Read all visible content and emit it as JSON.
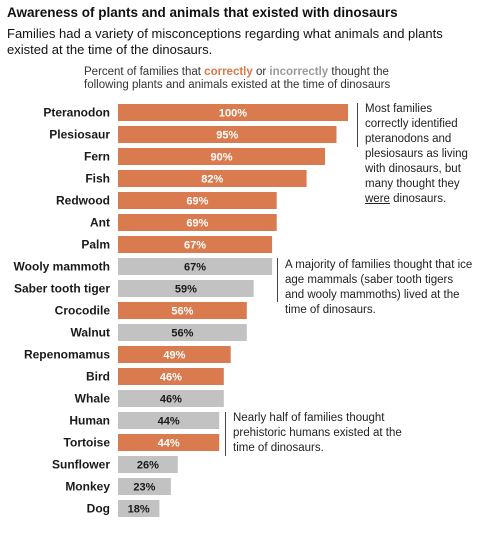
{
  "header": {
    "title": "Awareness of plants and animals that existed with dinosaurs",
    "subtitle": "Families had a variety of misconceptions regarding what animals and plants existed at the time of the dinosaurs."
  },
  "legend": {
    "prefix": "Percent of families that ",
    "correct_word": "correctly",
    "or_word": " or ",
    "incorrect_word": "incorrectly",
    "suffix": " thought the following plants and animals existed at the time of dinosaurs"
  },
  "colors": {
    "correct": "#d97b4f",
    "incorrect": "#c2c2c2"
  },
  "annotations": [
    {
      "text_before": "Most families correctly identified pteranodons and plesiosaurs as living with dinosaurs, but many thought they ",
      "underlined": "were",
      "text_after": " dinosaurs."
    },
    {
      "text_before": "A majority of families thought that ice age mammals (saber tooth tigers and wooly mammoths) lived at the time of dinosaurs.",
      "underlined": "",
      "text_after": ""
    },
    {
      "text_before": "Nearly half of families thought prehistoric humans existed at the time of dinosaurs.",
      "underlined": "",
      "text_after": ""
    }
  ],
  "chart_data": {
    "type": "bar",
    "orientation": "horizontal",
    "xlim": [
      0,
      100
    ],
    "categories": [
      "Pteranodon",
      "Plesiosaur",
      "Fern",
      "Fish",
      "Redwood",
      "Ant",
      "Palm",
      "Wooly mammoth",
      "Saber tooth tiger",
      "Crocodile",
      "Walnut",
      "Repenomamus",
      "Bird",
      "Whale",
      "Human",
      "Tortoise",
      "Sunflower",
      "Monkey",
      "Dog"
    ],
    "values": [
      100,
      95,
      90,
      82,
      69,
      69,
      67,
      67,
      59,
      56,
      56,
      49,
      46,
      46,
      44,
      44,
      26,
      23,
      18
    ],
    "labels": [
      "100%",
      "95%",
      "90%",
      "82%",
      "69%",
      "69%",
      "67%",
      "67%",
      "59%",
      "56%",
      "56%",
      "49%",
      "46%",
      "46%",
      "44%",
      "44%",
      "26%",
      "23%",
      "18%"
    ],
    "correct": [
      true,
      true,
      true,
      true,
      true,
      true,
      true,
      false,
      false,
      true,
      false,
      true,
      true,
      false,
      false,
      true,
      false,
      false,
      false
    ]
  }
}
